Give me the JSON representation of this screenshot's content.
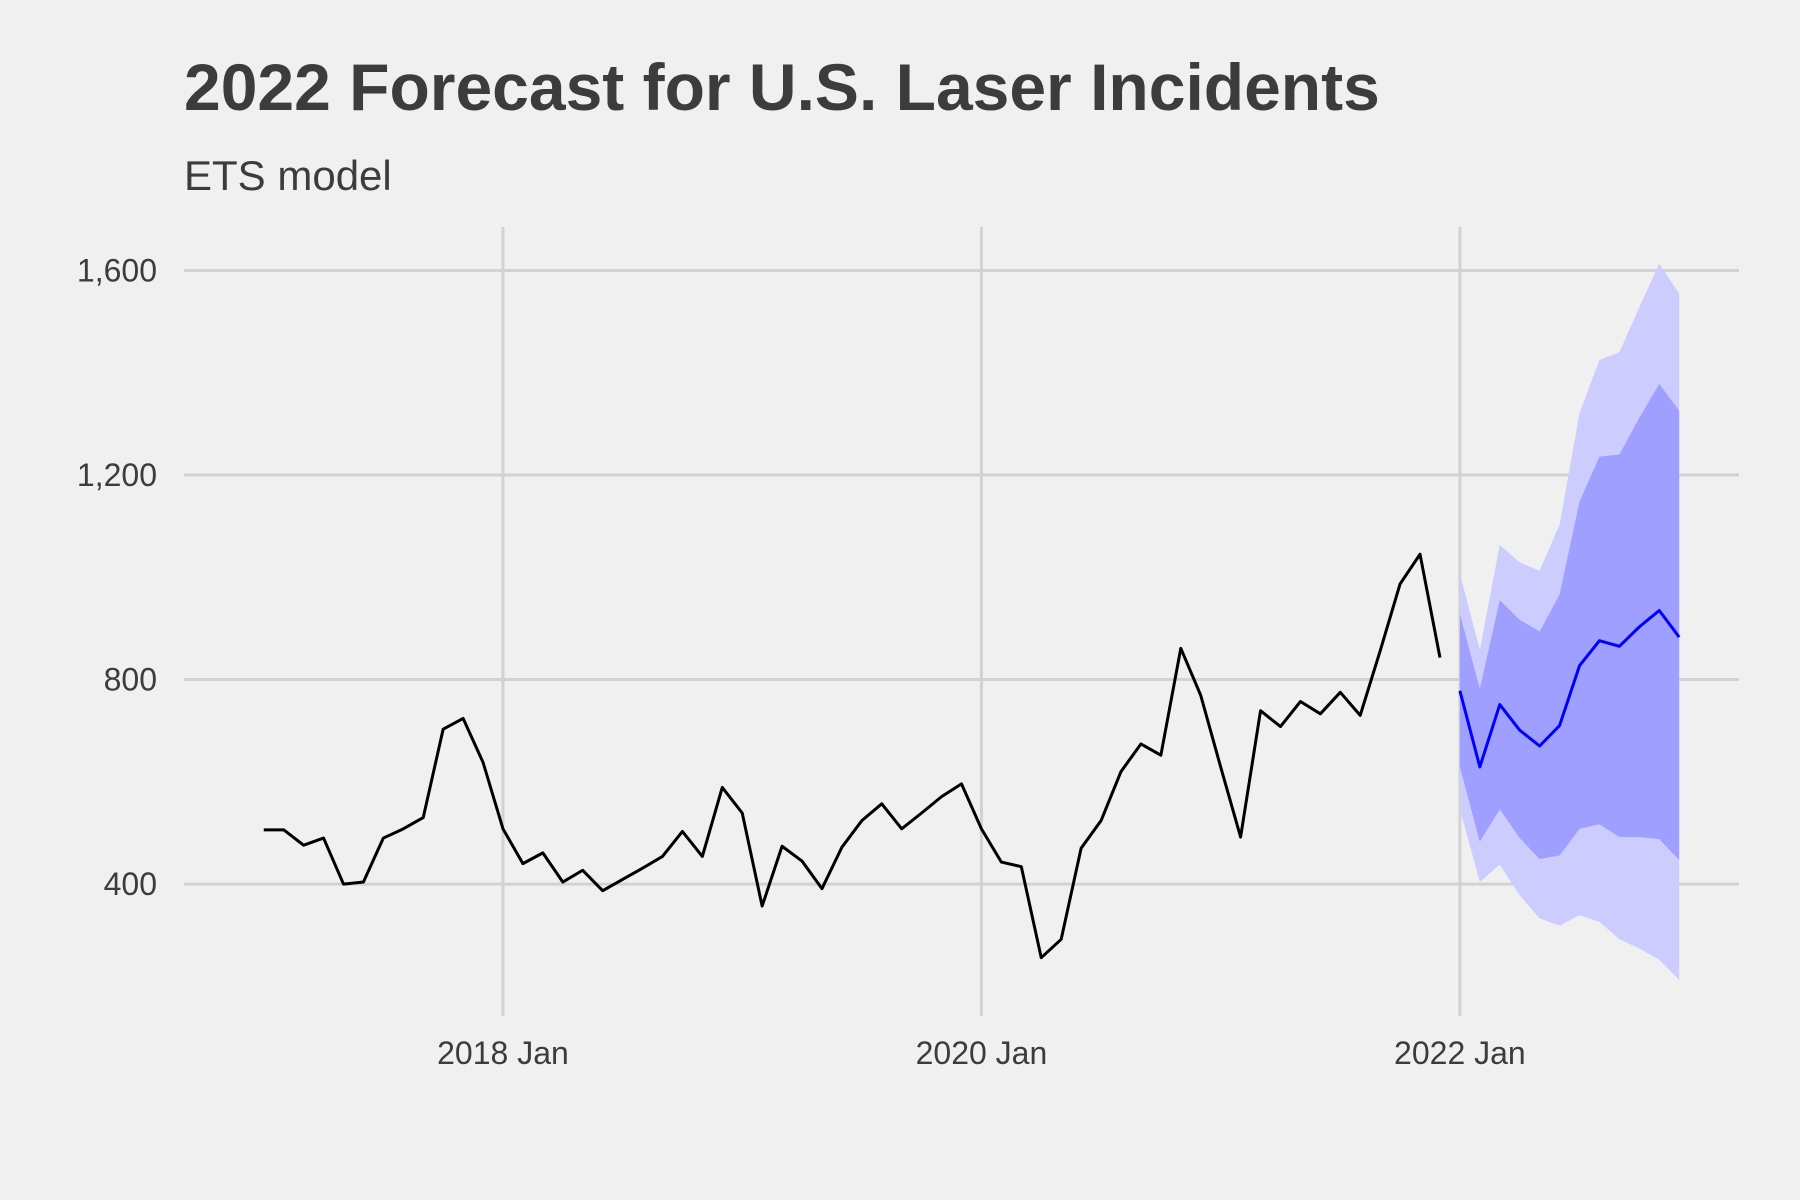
{
  "chart_data": {
    "type": "line",
    "title": "2022 Forecast for U.S. Laser Incidents",
    "subtitle": "ETS model",
    "xlim": [
      "2016-09",
      "2023-03"
    ],
    "xticks": [
      {
        "value": "2018-01",
        "label": "2018 Jan"
      },
      {
        "value": "2020-01",
        "label": "2020 Jan"
      },
      {
        "value": "2022-01",
        "label": "2022 Jan"
      }
    ],
    "ylim": [
      142,
      1685
    ],
    "yticks": [
      {
        "value": 400,
        "label": "400"
      },
      {
        "value": 800,
        "label": "800"
      },
      {
        "value": 1200,
        "label": "1,200"
      },
      {
        "value": 1600,
        "label": "1,600"
      }
    ],
    "grid": true,
    "bands": [
      {
        "color": "#ccccff",
        "x": [
          "2022-01",
          "2022-02",
          "2022-03",
          "2022-04",
          "2022-05",
          "2022-06",
          "2022-07",
          "2022-08",
          "2022-09",
          "2022-10",
          "2022-11",
          "2022-12"
        ],
        "lower": [
          546,
          404,
          438,
          378,
          333,
          319,
          339,
          326,
          292,
          274,
          252,
          213
        ],
        "upper": [
          1007,
          858,
          1063,
          1029,
          1013,
          1103,
          1321,
          1425,
          1440,
          1528,
          1613,
          1555
        ]
      },
      {
        "color": "#9f9fff",
        "x": [
          "2022-01",
          "2022-02",
          "2022-03",
          "2022-04",
          "2022-05",
          "2022-06",
          "2022-07",
          "2022-08",
          "2022-09",
          "2022-10",
          "2022-11",
          "2022-12"
        ],
        "lower": [
          629,
          483,
          546,
          490,
          449,
          456,
          508,
          517,
          492,
          492,
          488,
          447
        ],
        "upper": [
          928,
          782,
          955,
          917,
          894,
          966,
          1148,
          1236,
          1240,
          1312,
          1378,
          1326
        ]
      }
    ],
    "series": [
      {
        "color": "#000000",
        "x": [
          "2017-01",
          "2017-02",
          "2017-03",
          "2017-04",
          "2017-05",
          "2017-06",
          "2017-07",
          "2017-08",
          "2017-09",
          "2017-10",
          "2017-11",
          "2017-12",
          "2018-01",
          "2018-02",
          "2018-03",
          "2018-04",
          "2018-05",
          "2018-06",
          "2018-07",
          "2018-08",
          "2018-09",
          "2018-10",
          "2018-11",
          "2018-12",
          "2019-01",
          "2019-02",
          "2019-03",
          "2019-04",
          "2019-05",
          "2019-06",
          "2019-07",
          "2019-08",
          "2019-09",
          "2019-10",
          "2019-11",
          "2019-12",
          "2020-01",
          "2020-02",
          "2020-03",
          "2020-04",
          "2020-05",
          "2020-06",
          "2020-07",
          "2020-08",
          "2020-09",
          "2020-10",
          "2020-11",
          "2020-12",
          "2021-01",
          "2021-02",
          "2021-03",
          "2021-04",
          "2021-05",
          "2021-06",
          "2021-07",
          "2021-08",
          "2021-09",
          "2021-10",
          "2021-11",
          "2021-12"
        ],
        "values": [
          506,
          506,
          476,
          490,
          400,
          404,
          490,
          508,
          530,
          703,
          724,
          638,
          508,
          440,
          461,
          404,
          427,
          387,
          409,
          431,
          454,
          503,
          454,
          589,
          539,
          357,
          474,
          445,
          391,
          472,
          524,
          557,
          508,
          539,
          571,
          596,
          508,
          443,
          434,
          256,
          292,
          470,
          524,
          620,
          674,
          652,
          861,
          769,
          629,
          492,
          739,
          708,
          757,
          733,
          775,
          730,
          856,
          987,
          1045,
          843
        ]
      },
      {
        "color": "#0000ff",
        "x": [
          "2022-01",
          "2022-02",
          "2022-03",
          "2022-04",
          "2022-05",
          "2022-06",
          "2022-07",
          "2022-08",
          "2022-09",
          "2022-10",
          "2022-11",
          "2022-12"
        ],
        "values": [
          778,
          629,
          751,
          701,
          670,
          710,
          827,
          876,
          865,
          903,
          935,
          883
        ]
      }
    ]
  }
}
